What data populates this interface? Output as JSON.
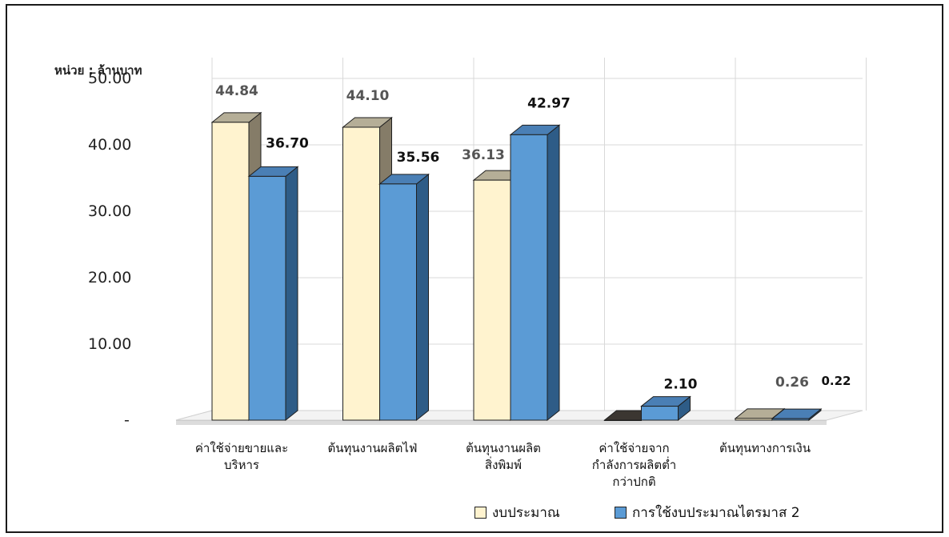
{
  "chart_data": {
    "type": "bar",
    "unit_label": "หน่วย : ล้านบาท",
    "categories": [
      [
        "ค่าใช้จ่ายขายและ",
        "บริหาร"
      ],
      [
        "ต้นทุนงานผลิตไฟ่"
      ],
      [
        "ต้นทุนงานผลิต",
        "สิ่งพิมพ์"
      ],
      [
        "ค่าใช้จ่ายจาก",
        "กำลังการผลิตต่ำ",
        "กว่าปกติ"
      ],
      [
        "ต้นทุนทางการเงิน"
      ]
    ],
    "series": [
      {
        "name": "งบประมาณ",
        "values": [
          44.84,
          44.1,
          36.13,
          0,
          0.26
        ],
        "labels": [
          "44.84",
          "44.10",
          "36.13",
          "-",
          "0.26"
        ],
        "color": "#FFF3CF",
        "top_color": "#B5AE97",
        "side_color": "#857C68",
        "label_color": "#555555"
      },
      {
        "name": "การใช้งบประมาณไตรมาส 2",
        "values": [
          36.7,
          35.56,
          42.97,
          2.1,
          0.22
        ],
        "labels": [
          "36.70",
          "35.56",
          "42.97",
          "2.10",
          "0.22"
        ],
        "color": "#5B9BD5",
        "top_color": "#4A7FB5",
        "side_color": "#2E5C87",
        "label_color": "#111111"
      }
    ],
    "y_ticks": [
      {
        "value": 0,
        "label": "-"
      },
      {
        "value": 10,
        "label": "10.00"
      },
      {
        "value": 20,
        "label": "20.00"
      },
      {
        "value": 30,
        "label": "30.00"
      },
      {
        "value": 40,
        "label": "40.00"
      },
      {
        "value": 50,
        "label": "50.00"
      }
    ],
    "ylim": [
      0,
      50
    ],
    "grid": true,
    "legend_position": "bottom-right"
  }
}
